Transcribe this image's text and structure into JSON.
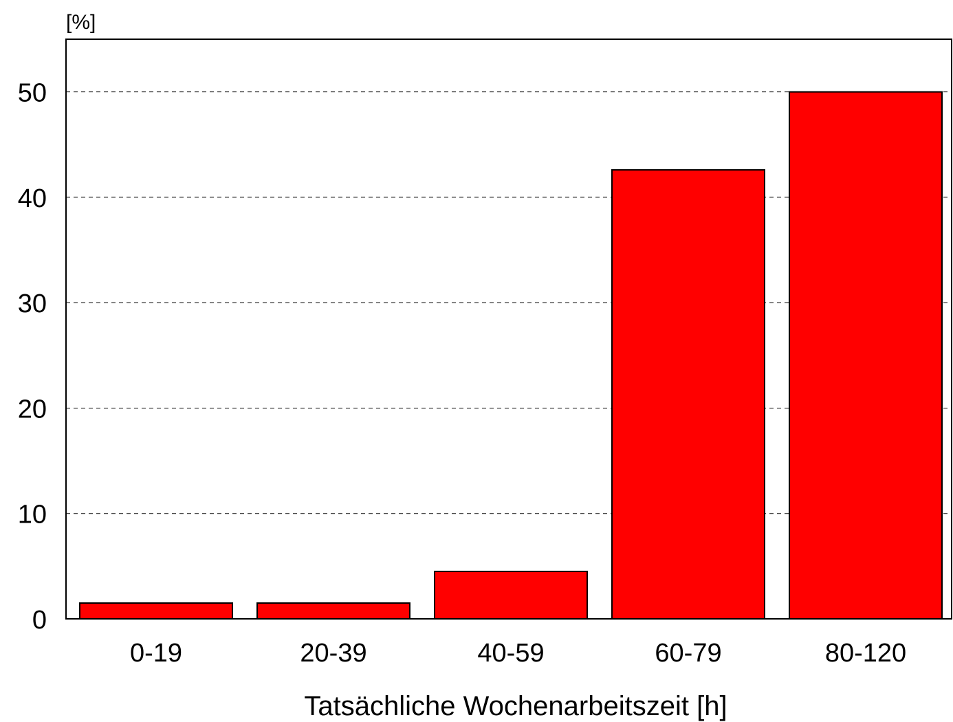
{
  "chart_data": {
    "type": "bar",
    "title": "",
    "xlabel": "Tatsächliche Wochenarbeitszeit [h]",
    "ylabel": "[%]",
    "categories": [
      "0-19",
      "20-39",
      "40-59",
      "60-79",
      "80-120"
    ],
    "values": [
      1.5,
      1.5,
      4.5,
      42.6,
      50.0
    ],
    "ylim": [
      0,
      55
    ],
    "yticks": [
      0,
      10,
      20,
      30,
      40,
      50
    ],
    "ytick_labels": [
      "0",
      "10",
      "20",
      "30",
      "40",
      "50"
    ],
    "grid": "horizontal dashed",
    "legend": "none",
    "colors": {
      "bar_fill": "#ff0000",
      "bar_stroke": "#000000",
      "grid": "#000000",
      "axis": "#000000"
    }
  }
}
